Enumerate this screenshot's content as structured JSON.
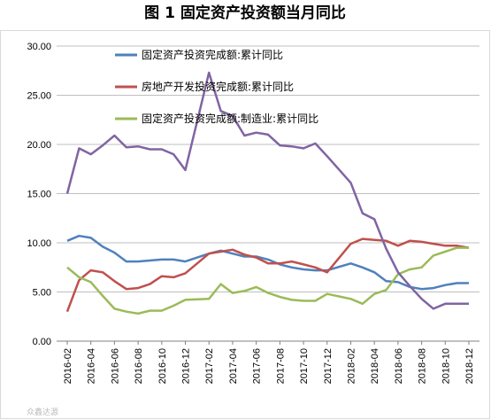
{
  "title": "图 1  固定资产投资额当月同比",
  "watermark": "众鑫达源",
  "chart_data": {
    "type": "line",
    "ylim": [
      0,
      30
    ],
    "yticks": [
      "0.00",
      "5.00",
      "10.00",
      "15.00",
      "20.00",
      "25.00",
      "30.00"
    ],
    "grid": "horizontal",
    "legend_position": "top-center",
    "x": [
      "2016-02",
      "2016-03",
      "2016-04",
      "2016-05",
      "2016-06",
      "2016-07",
      "2016-08",
      "2016-09",
      "2016-10",
      "2016-11",
      "2016-12",
      "2017-01",
      "2017-02",
      "2017-03",
      "2017-04",
      "2017-05",
      "2017-06",
      "2017-07",
      "2017-08",
      "2017-09",
      "2017-10",
      "2017-11",
      "2017-12",
      "2018-01",
      "2018-02",
      "2018-03",
      "2018-04",
      "2018-05",
      "2018-06",
      "2018-07",
      "2018-08",
      "2018-09",
      "2018-10",
      "2018-11",
      "2018-12"
    ],
    "x_tick_labels": [
      "2016-02",
      "2016-04",
      "2016-06",
      "2016-08",
      "2016-10",
      "2016-12",
      "2017-02",
      "2017-04",
      "2017-06",
      "2017-08",
      "2017-10",
      "2017-12",
      "2018-02",
      "2018-04",
      "2018-06",
      "2018-08",
      "2018-10",
      "2018-12"
    ],
    "series": [
      {
        "name": "固定资产投资完成额:累计同比",
        "color": "#4F81BD",
        "values": [
          10.2,
          10.7,
          10.5,
          9.6,
          9.0,
          8.1,
          8.1,
          8.2,
          8.3,
          8.3,
          8.1,
          null,
          8.9,
          9.2,
          8.9,
          8.6,
          8.6,
          8.3,
          7.8,
          7.5,
          7.3,
          7.2,
          7.2,
          null,
          7.9,
          7.5,
          7.0,
          6.1,
          6.0,
          5.5,
          5.3,
          5.4,
          5.7,
          5.9,
          5.9
        ]
      },
      {
        "name": "房地产开发投资完成额:累计同比",
        "color": "#C0504D",
        "values": [
          3.0,
          6.2,
          7.2,
          7.0,
          6.1,
          5.3,
          5.4,
          5.8,
          6.6,
          6.5,
          6.9,
          null,
          8.9,
          9.1,
          9.3,
          8.8,
          8.5,
          7.9,
          7.9,
          8.1,
          7.8,
          7.5,
          7.0,
          null,
          9.9,
          10.4,
          10.3,
          10.2,
          9.7,
          10.2,
          10.1,
          9.9,
          9.7,
          9.7,
          9.5
        ]
      },
      {
        "name": "固定资产投资完成额:制造业:累计同比",
        "color": "#9BBB59",
        "values": [
          7.5,
          6.5,
          6.0,
          4.6,
          3.3,
          3.0,
          2.8,
          3.1,
          3.1,
          3.6,
          4.2,
          null,
          4.3,
          5.8,
          4.9,
          5.1,
          5.5,
          4.9,
          4.5,
          4.2,
          4.1,
          4.1,
          4.8,
          null,
          4.3,
          3.8,
          4.8,
          5.2,
          6.8,
          7.3,
          7.5,
          8.7,
          9.1,
          9.5,
          9.5
        ]
      },
      {
        "color": "#8064A2",
        "values": [
          15.0,
          19.6,
          19.0,
          19.9,
          20.9,
          19.7,
          19.8,
          19.5,
          19.5,
          19.0,
          17.4,
          null,
          27.3,
          23.4,
          22.9,
          20.9,
          21.2,
          21.0,
          19.9,
          19.8,
          19.6,
          20.1,
          18.8,
          null,
          16.1,
          13.0,
          12.4,
          9.4,
          7.0,
          5.6,
          4.3,
          3.3,
          3.8,
          3.8,
          3.8
        ]
      }
    ]
  }
}
